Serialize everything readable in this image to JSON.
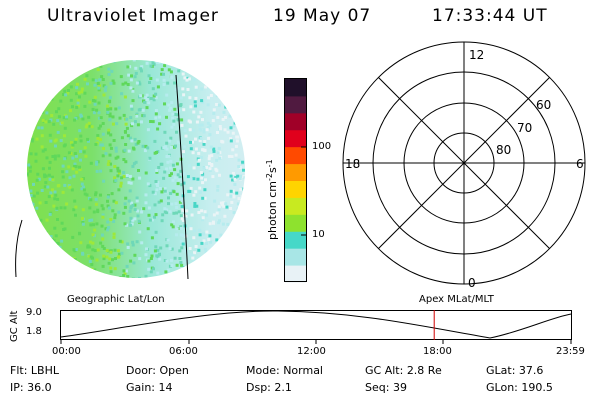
{
  "header": {
    "title": "Ultraviolet Imager",
    "date": "19 May 07",
    "time": "17:33:44 UT"
  },
  "colorbar": {
    "unit_label": "photon cm^-2 s^-1",
    "ticks": [
      "100",
      "10"
    ],
    "scale": "log",
    "colors": [
      "#e8f2f6",
      "#a8e6e6",
      "#46d8c8",
      "#8ee22e",
      "#c8ea20",
      "#ffd400",
      "#ff9a00",
      "#ff4a00",
      "#e0001c",
      "#a00028",
      "#501a40",
      "#20102a"
    ]
  },
  "polar_plot": {
    "clock_labels": [
      "12",
      "18",
      "6",
      "0"
    ],
    "lat_labels": [
      "60",
      "70",
      "80"
    ]
  },
  "timeline": {
    "axis_title": "GC Alt",
    "left_label": "Geographic Lat/Lon",
    "right_label": "Apex MLat/MLT",
    "y_ticks": [
      "9.0",
      "1.8"
    ],
    "x_ticks": [
      "00:00",
      "06:00",
      "12:00",
      "18:00",
      "23:59"
    ],
    "current_time_fraction": 0.7317
  },
  "status": {
    "row1": [
      {
        "label": "Flt:",
        "value": "LBHL"
      },
      {
        "label": "Door:",
        "value": "Open"
      },
      {
        "label": "Mode:",
        "value": "Normal"
      },
      {
        "label": "GC Alt:",
        "value": "2.8 Re"
      },
      {
        "label": "GLat:",
        "value": "37.6"
      }
    ],
    "row2": [
      {
        "label": "IP:",
        "value": "36.0"
      },
      {
        "label": "Gain:",
        "value": "14"
      },
      {
        "label": "Dsp:",
        "value": "2.1"
      },
      {
        "label": "Seq:",
        "value": "39"
      },
      {
        "label": "GLon:",
        "value": "190.5"
      }
    ]
  }
}
